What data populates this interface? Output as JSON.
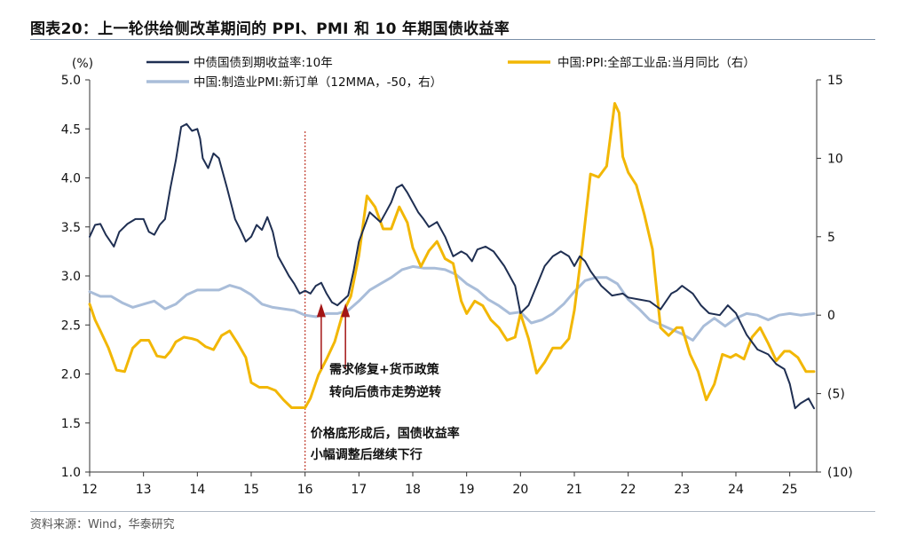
{
  "title": "图表20：上一轮供给侧改革期间的 PPI、PMI 和 10 年期国债收益率",
  "source": "资料来源：Wind，华泰研究",
  "chart_data": {
    "type": "line",
    "y_unit_label": "(%)",
    "x_ticks": [
      "12",
      "13",
      "14",
      "15",
      "16",
      "17",
      "18",
      "19",
      "20",
      "21",
      "22",
      "23",
      "24",
      "25"
    ],
    "xlim": [
      2012.0,
      2025.5
    ],
    "ylim_left": [
      1.0,
      5.0
    ],
    "yticks_left": [
      "1.0",
      "1.5",
      "2.0",
      "2.5",
      "3.0",
      "3.5",
      "4.0",
      "4.5",
      "5.0"
    ],
    "ylim_right": [
      -10,
      15
    ],
    "yticks_right": [
      "(10)",
      "(5)",
      "0",
      "5",
      "10",
      "15"
    ],
    "grid": false,
    "legend_position": "top",
    "colors": {
      "bond": "#1f2f52",
      "ppi": "#f2b705",
      "pmi": "#a9bdd9",
      "vline": "#c0392b",
      "arrow": "#a31515"
    },
    "series": [
      {
        "name": "中债国债到期收益率:10年",
        "axis": "left",
        "x": [
          2012.0,
          2012.1,
          2012.2,
          2012.3,
          2012.45,
          2012.55,
          2012.7,
          2012.85,
          2013.0,
          2013.1,
          2013.2,
          2013.3,
          2013.4,
          2013.5,
          2013.6,
          2013.7,
          2013.8,
          2013.9,
          2014.0,
          2014.05,
          2014.1,
          2014.2,
          2014.3,
          2014.4,
          2014.55,
          2014.7,
          2014.8,
          2014.9,
          2015.0,
          2015.1,
          2015.2,
          2015.3,
          2015.4,
          2015.5,
          2015.6,
          2015.7,
          2015.8,
          2015.9,
          2016.0,
          2016.1,
          2016.2,
          2016.3,
          2016.4,
          2016.5,
          2016.6,
          2016.7,
          2016.8,
          2016.9,
          2017.0,
          2017.2,
          2017.4,
          2017.5,
          2017.6,
          2017.7,
          2017.8,
          2017.9,
          2018.0,
          2018.1,
          2018.2,
          2018.3,
          2018.45,
          2018.6,
          2018.75,
          2018.9,
          2019.0,
          2019.1,
          2019.2,
          2019.35,
          2019.5,
          2019.7,
          2019.9,
          2020.0,
          2020.15,
          2020.3,
          2020.45,
          2020.6,
          2020.75,
          2020.9,
          2021.0,
          2021.1,
          2021.2,
          2021.3,
          2021.5,
          2021.7,
          2021.9,
          2022.0,
          2022.2,
          2022.4,
          2022.6,
          2022.8,
          2022.9,
          2023.0,
          2023.2,
          2023.35,
          2023.5,
          2023.7,
          2023.85,
          2024.0,
          2024.2,
          2024.4,
          2024.6,
          2024.75,
          2024.9,
          2025.0,
          2025.1,
          2025.2,
          2025.35,
          2025.45
        ],
        "values": [
          3.4,
          3.52,
          3.53,
          3.42,
          3.3,
          3.45,
          3.53,
          3.58,
          3.58,
          3.45,
          3.42,
          3.52,
          3.58,
          3.9,
          4.18,
          4.52,
          4.55,
          4.48,
          4.5,
          4.4,
          4.2,
          4.1,
          4.25,
          4.2,
          3.9,
          3.58,
          3.47,
          3.35,
          3.4,
          3.52,
          3.47,
          3.6,
          3.45,
          3.2,
          3.1,
          3.0,
          2.92,
          2.82,
          2.85,
          2.82,
          2.9,
          2.93,
          2.82,
          2.73,
          2.7,
          2.75,
          2.8,
          3.05,
          3.35,
          3.65,
          3.55,
          3.65,
          3.75,
          3.9,
          3.93,
          3.85,
          3.75,
          3.65,
          3.58,
          3.5,
          3.55,
          3.4,
          3.2,
          3.25,
          3.22,
          3.15,
          3.27,
          3.3,
          3.25,
          3.1,
          2.9,
          2.62,
          2.7,
          2.9,
          3.1,
          3.2,
          3.25,
          3.2,
          3.1,
          3.2,
          3.15,
          3.05,
          2.9,
          2.8,
          2.82,
          2.78,
          2.76,
          2.74,
          2.66,
          2.82,
          2.85,
          2.9,
          2.82,
          2.7,
          2.62,
          2.6,
          2.7,
          2.62,
          2.4,
          2.25,
          2.2,
          2.1,
          2.05,
          1.9,
          1.65,
          1.7,
          1.75,
          1.65
        ]
      },
      {
        "name": "中国:PPI:全部工业品:当月同比（右）",
        "axis": "right",
        "x": [
          2012.0,
          2012.1,
          2012.2,
          2012.35,
          2012.5,
          2012.65,
          2012.8,
          2012.95,
          2013.1,
          2013.25,
          2013.4,
          2013.5,
          2013.6,
          2013.75,
          2013.9,
          2014.0,
          2014.15,
          2014.3,
          2014.45,
          2014.6,
          2014.75,
          2014.9,
          2015.0,
          2015.15,
          2015.3,
          2015.45,
          2015.6,
          2015.75,
          2015.9,
          2016.0,
          2016.1,
          2016.25,
          2016.4,
          2016.55,
          2016.7,
          2016.85,
          2017.0,
          2017.15,
          2017.3,
          2017.45,
          2017.6,
          2017.75,
          2017.9,
          2018.0,
          2018.15,
          2018.3,
          2018.45,
          2018.6,
          2018.75,
          2018.9,
          2019.0,
          2019.15,
          2019.3,
          2019.45,
          2019.6,
          2019.75,
          2019.9,
          2020.0,
          2020.15,
          2020.3,
          2020.45,
          2020.6,
          2020.75,
          2020.9,
          2021.0,
          2021.15,
          2021.3,
          2021.45,
          2021.6,
          2021.75,
          2021.83,
          2021.9,
          2022.0,
          2022.15,
          2022.3,
          2022.45,
          2022.6,
          2022.75,
          2022.9,
          2023.0,
          2023.15,
          2023.3,
          2023.45,
          2023.6,
          2023.75,
          2023.9,
          2024.0,
          2024.15,
          2024.3,
          2024.45,
          2024.6,
          2024.75,
          2024.9,
          2025.0,
          2025.15,
          2025.3,
          2025.45
        ],
        "values": [
          0.7,
          -0.3,
          -1.0,
          -2.1,
          -3.5,
          -3.6,
          -2.1,
          -1.6,
          -1.6,
          -2.6,
          -2.7,
          -2.3,
          -1.7,
          -1.4,
          -1.5,
          -1.6,
          -2.0,
          -2.2,
          -1.3,
          -1.0,
          -1.8,
          -2.7,
          -4.3,
          -4.6,
          -4.6,
          -4.8,
          -5.4,
          -5.9,
          -5.9,
          -5.9,
          -5.3,
          -3.8,
          -2.8,
          -1.7,
          0.1,
          1.2,
          3.8,
          7.6,
          6.9,
          5.5,
          5.5,
          6.9,
          5.9,
          4.3,
          3.1,
          4.1,
          4.7,
          3.6,
          3.3,
          0.9,
          0.1,
          0.9,
          0.6,
          -0.3,
          -0.8,
          -1.6,
          -1.4,
          0.1,
          -1.5,
          -3.7,
          -3.0,
          -2.1,
          -2.1,
          -1.5,
          0.3,
          4.4,
          9.0,
          8.8,
          9.5,
          13.5,
          12.9,
          10.1,
          9.1,
          8.3,
          6.4,
          4.2,
          -0.8,
          -1.3,
          -0.8,
          -0.8,
          -2.5,
          -3.6,
          -5.4,
          -4.4,
          -2.5,
          -2.7,
          -2.5,
          -2.8,
          -1.4,
          -0.8,
          -1.8,
          -2.9,
          -2.3,
          -2.3,
          -2.7,
          -3.6,
          -3.6
        ]
      },
      {
        "name": "中国:制造业PMI:新订单（12MMA，-50，右）",
        "axis": "right",
        "x": [
          2012.0,
          2012.2,
          2012.4,
          2012.6,
          2012.8,
          2013.0,
          2013.2,
          2013.4,
          2013.6,
          2013.8,
          2014.0,
          2014.2,
          2014.4,
          2014.6,
          2014.8,
          2015.0,
          2015.2,
          2015.4,
          2015.6,
          2015.8,
          2016.0,
          2016.2,
          2016.4,
          2016.6,
          2016.8,
          2017.0,
          2017.2,
          2017.4,
          2017.6,
          2017.8,
          2018.0,
          2018.2,
          2018.4,
          2018.6,
          2018.8,
          2019.0,
          2019.2,
          2019.4,
          2019.6,
          2019.8,
          2020.0,
          2020.2,
          2020.4,
          2020.6,
          2020.8,
          2021.0,
          2021.2,
          2021.4,
          2021.6,
          2021.8,
          2022.0,
          2022.2,
          2022.4,
          2022.6,
          2022.8,
          2023.0,
          2023.2,
          2023.4,
          2023.6,
          2023.8,
          2024.0,
          2024.2,
          2024.4,
          2024.6,
          2024.8,
          2025.0,
          2025.2,
          2025.45
        ],
        "values": [
          1.5,
          1.2,
          1.2,
          0.8,
          0.5,
          0.7,
          0.9,
          0.4,
          0.7,
          1.3,
          1.6,
          1.6,
          1.6,
          1.9,
          1.7,
          1.3,
          0.7,
          0.5,
          0.4,
          0.3,
          0.0,
          -0.1,
          0.1,
          0.1,
          0.3,
          0.9,
          1.6,
          2.0,
          2.4,
          2.9,
          3.1,
          3.0,
          3.0,
          2.9,
          2.6,
          2.0,
          1.6,
          1.0,
          0.6,
          0.1,
          0.2,
          -0.5,
          -0.3,
          0.1,
          0.7,
          1.5,
          2.2,
          2.4,
          2.4,
          2.0,
          1.0,
          0.4,
          -0.3,
          -0.6,
          -0.9,
          -1.2,
          -1.6,
          -0.7,
          -0.2,
          -0.7,
          -0.2,
          0.1,
          0.0,
          -0.3,
          0.0,
          0.1,
          0.0,
          0.1
        ]
      }
    ],
    "vline_x": 2016.0,
    "arrows": [
      {
        "x": 2016.3
      },
      {
        "x": 2016.75
      }
    ],
    "annotations": [
      {
        "text": "需求修复+货币政策",
        "x": 2016.45,
        "y": 2.05
      },
      {
        "text": "转向后债市走势逆转",
        "x": 2016.45,
        "y": 1.82
      },
      {
        "text": "价格底形成后，国债收益率",
        "x": 2016.1,
        "y": 1.4
      },
      {
        "text": "小幅调整后继续下行",
        "x": 2016.1,
        "y": 1.18
      }
    ]
  }
}
